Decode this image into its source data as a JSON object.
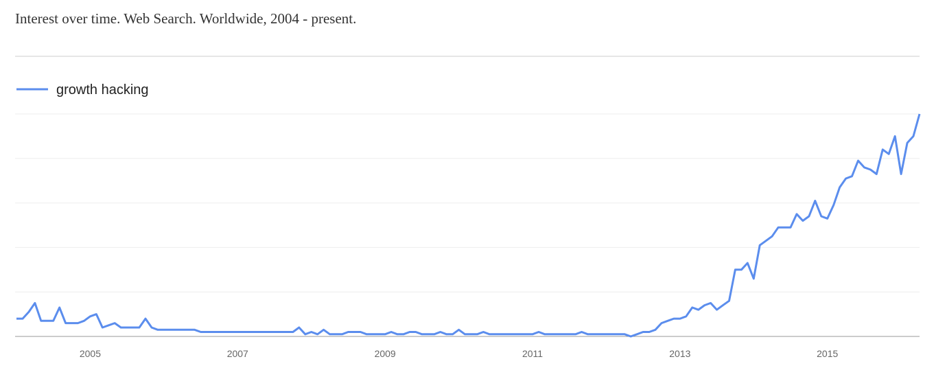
{
  "chart_data": {
    "type": "line",
    "title": "Interest over time. Web Search. Worldwide, 2004 - present.",
    "categories": [
      null,
      null,
      null,
      null,
      null,
      null,
      null,
      null,
      null,
      null,
      null,
      null,
      "2005",
      null,
      null,
      null,
      null,
      null,
      null,
      null,
      null,
      null,
      null,
      null,
      null,
      null,
      null,
      null,
      null,
      null,
      null,
      null,
      null,
      null,
      null,
      null,
      "2007",
      null,
      null,
      null,
      null,
      null,
      null,
      null,
      null,
      null,
      null,
      null,
      null,
      null,
      null,
      null,
      null,
      null,
      null,
      null,
      null,
      null,
      null,
      null,
      "2009",
      null,
      null,
      null,
      null,
      null,
      null,
      null,
      null,
      null,
      null,
      null,
      null,
      null,
      null,
      null,
      null,
      null,
      null,
      null,
      null,
      null,
      null,
      null,
      "2011",
      null,
      null,
      null,
      null,
      null,
      null,
      null,
      null,
      null,
      null,
      null,
      null,
      null,
      null,
      null,
      null,
      null,
      null,
      null,
      null,
      null,
      null,
      null,
      "2013",
      null,
      null,
      null,
      null,
      null,
      null,
      null,
      null,
      null,
      null,
      null,
      null,
      null,
      null,
      null,
      null,
      null,
      null,
      null,
      null,
      null,
      null,
      null,
      "2015",
      null,
      null,
      null,
      null,
      null,
      null,
      null,
      null,
      null,
      null,
      null,
      null,
      null,
      null,
      null
    ],
    "series": [
      {
        "name": "growth hacking",
        "color": "#5b8ded",
        "values": [
          8,
          8,
          11,
          15,
          7,
          7,
          7,
          13,
          6,
          6,
          6,
          7,
          9,
          10,
          4,
          5,
          6,
          4,
          4,
          4,
          4,
          8,
          4,
          3,
          3,
          3,
          3,
          3,
          3,
          3,
          2,
          2,
          2,
          2,
          2,
          2,
          2,
          2,
          2,
          2,
          2,
          2,
          2,
          2,
          2,
          2,
          4,
          1,
          2,
          1,
          3,
          1,
          1,
          1,
          2,
          2,
          2,
          1,
          1,
          1,
          1,
          2,
          1,
          1,
          2,
          2,
          1,
          1,
          1,
          2,
          1,
          1,
          3,
          1,
          1,
          1,
          2,
          1,
          1,
          1,
          1,
          1,
          1,
          1,
          1,
          2,
          1,
          1,
          1,
          1,
          1,
          1,
          2,
          1,
          1,
          1,
          1,
          1,
          1,
          1,
          0,
          1,
          2,
          2,
          3,
          6,
          7,
          8,
          8,
          9,
          13,
          12,
          14,
          15,
          12,
          14,
          16,
          30,
          30,
          33,
          26,
          41,
          43,
          45,
          49,
          49,
          49,
          55,
          52,
          54,
          61,
          54,
          53,
          59,
          67,
          71,
          72,
          79,
          76,
          75,
          73,
          84,
          82,
          90,
          73,
          87,
          90,
          100
        ]
      }
    ],
    "ylim": [
      0,
      100
    ],
    "ygrid": [
      0,
      20,
      40,
      60,
      80,
      100
    ],
    "legend": "top-left"
  }
}
